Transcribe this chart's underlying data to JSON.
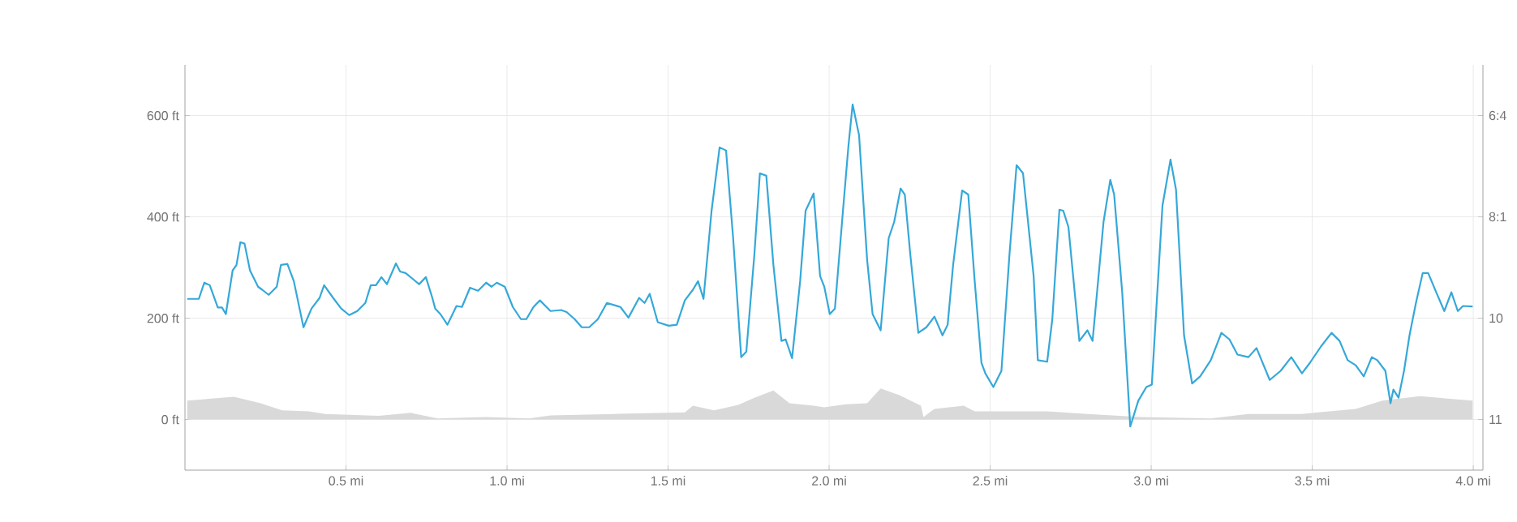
{
  "chart_data": {
    "type": "line",
    "xlim": [
      0,
      4.03
    ],
    "ylim": [
      -100,
      700
    ],
    "annotations": [
      "6:4",
      "8:1",
      "10",
      "11"
    ],
    "xticks": [
      {
        "value": 0.5,
        "label": "0.5 mi"
      },
      {
        "value": 1.0,
        "label": "1.0 mi"
      },
      {
        "value": 1.5,
        "label": "1.5 mi"
      },
      {
        "value": 2.0,
        "label": "2.0 mi"
      },
      {
        "value": 2.5,
        "label": "2.5 mi"
      },
      {
        "value": 3.0,
        "label": "3.0 mi"
      },
      {
        "value": 3.5,
        "label": "3.5 mi"
      },
      {
        "value": 4.0,
        "label": "4.0 mi"
      }
    ],
    "yticks": [
      {
        "value": 0,
        "label": "0 ft"
      },
      {
        "value": 200,
        "label": "200 ft"
      },
      {
        "value": 400,
        "label": "400 ft"
      },
      {
        "value": 600,
        "label": "600 ft"
      }
    ],
    "grid": true,
    "series": [
      {
        "type": "area",
        "color": "#d9d9d9",
        "x": [
          0.007,
          0.152,
          0.235,
          0.302,
          0.385,
          0.435,
          0.602,
          0.702,
          0.785,
          0.935,
          1.068,
          1.135,
          1.335,
          1.552,
          1.577,
          1.643,
          1.718,
          1.768,
          1.827,
          1.877,
          1.952,
          1.985,
          2.052,
          2.118,
          2.16,
          2.218,
          2.285,
          2.293,
          2.327,
          2.418,
          2.452,
          2.677,
          2.802,
          2.968,
          3.185,
          3.302,
          3.468,
          3.635,
          3.718,
          3.835,
          3.998
        ],
        "values": [
          37,
          45,
          32,
          18,
          16,
          11,
          7,
          13,
          2,
          5,
          2,
          8,
          11,
          14,
          27,
          18,
          29,
          43,
          57,
          32,
          27,
          24,
          30,
          32,
          61,
          48,
          27,
          5,
          21,
          27,
          16,
          16,
          11,
          5,
          2,
          11,
          11,
          21,
          37,
          46,
          37
        ]
      },
      {
        "color": "#35a8d9",
        "x": [
          0.007,
          0.043,
          0.06,
          0.077,
          0.102,
          0.115,
          0.127,
          0.148,
          0.16,
          0.172,
          0.185,
          0.202,
          0.227,
          0.24,
          0.26,
          0.285,
          0.298,
          0.318,
          0.338,
          0.368,
          0.393,
          0.418,
          0.432,
          0.46,
          0.485,
          0.51,
          0.535,
          0.56,
          0.577,
          0.593,
          0.61,
          0.627,
          0.655,
          0.668,
          0.685,
          0.71,
          0.727,
          0.748,
          0.768,
          0.777,
          0.793,
          0.815,
          0.843,
          0.86,
          0.885,
          0.91,
          0.935,
          0.952,
          0.968,
          0.993,
          1.018,
          1.043,
          1.06,
          1.082,
          1.102,
          1.135,
          1.168,
          1.185,
          1.21,
          1.232,
          1.255,
          1.282,
          1.31,
          1.352,
          1.377,
          1.41,
          1.427,
          1.443,
          1.468,
          1.502,
          1.527,
          1.552,
          1.577,
          1.593,
          1.61,
          1.635,
          1.66,
          1.68,
          1.702,
          1.727,
          1.743,
          1.768,
          1.785,
          1.805,
          1.827,
          1.852,
          1.865,
          1.885,
          1.91,
          1.927,
          1.952,
          1.972,
          1.985,
          2.002,
          2.018,
          2.043,
          2.06,
          2.073,
          2.093,
          2.118,
          2.135,
          2.16,
          2.185,
          2.202,
          2.222,
          2.235,
          2.252,
          2.277,
          2.302,
          2.327,
          2.352,
          2.368,
          2.385,
          2.413,
          2.432,
          2.452,
          2.473,
          2.485,
          2.51,
          2.535,
          2.56,
          2.582,
          2.602,
          2.635,
          2.648,
          2.677,
          2.693,
          2.715,
          2.727,
          2.743,
          2.777,
          2.802,
          2.818,
          2.852,
          2.873,
          2.885,
          2.91,
          2.935,
          2.96,
          2.985,
          3.002,
          3.035,
          3.06,
          3.077,
          3.102,
          3.127,
          3.152,
          3.185,
          3.218,
          3.243,
          3.268,
          3.302,
          3.327,
          3.368,
          3.402,
          3.435,
          3.468,
          3.493,
          3.527,
          3.56,
          3.585,
          3.61,
          3.635,
          3.66,
          3.685,
          3.702,
          3.727,
          3.743,
          3.752,
          3.768,
          3.785,
          3.802,
          3.822,
          3.843,
          3.86,
          3.885,
          3.91,
          3.932,
          3.952,
          3.968,
          3.998
        ],
        "values": [
          238,
          238,
          270,
          265,
          221,
          221,
          208,
          294,
          305,
          350,
          347,
          294,
          262,
          256,
          246,
          262,
          305,
          307,
          273,
          182,
          219,
          240,
          265,
          240,
          219,
          206,
          214,
          230,
          265,
          265,
          281,
          267,
          308,
          292,
          289,
          276,
          267,
          281,
          240,
          219,
          208,
          187,
          224,
          222,
          260,
          254,
          270,
          262,
          270,
          262,
          222,
          198,
          198,
          222,
          235,
          214,
          216,
          212,
          198,
          182,
          182,
          198,
          230,
          222,
          201,
          240,
          230,
          248,
          192,
          185,
          187,
          235,
          256,
          273,
          238,
          412,
          537,
          531,
          358,
          123,
          134,
          326,
          486,
          481,
          305,
          155,
          158,
          121,
          273,
          412,
          446,
          283,
          262,
          208,
          219,
          412,
          540,
          622,
          561,
          315,
          208,
          176,
          358,
          390,
          456,
          444,
          326,
          171,
          182,
          203,
          166,
          187,
          305,
          452,
          444,
          273,
          112,
          91,
          64,
          96,
          326,
          502,
          486,
          283,
          117,
          114,
          198,
          414,
          412,
          380,
          155,
          176,
          155,
          390,
          473,
          444,
          251,
          -14,
          37,
          64,
          69,
          422,
          513,
          454,
          166,
          71,
          85,
          117,
          171,
          158,
          128,
          123,
          141,
          78,
          96,
          123,
          91,
          112,
          144,
          171,
          155,
          117,
          107,
          85,
          123,
          117,
          96,
          32,
          59,
          43,
          96,
          166,
          230,
          289,
          289,
          251,
          214,
          251,
          214,
          224,
          223
        ]
      }
    ]
  }
}
